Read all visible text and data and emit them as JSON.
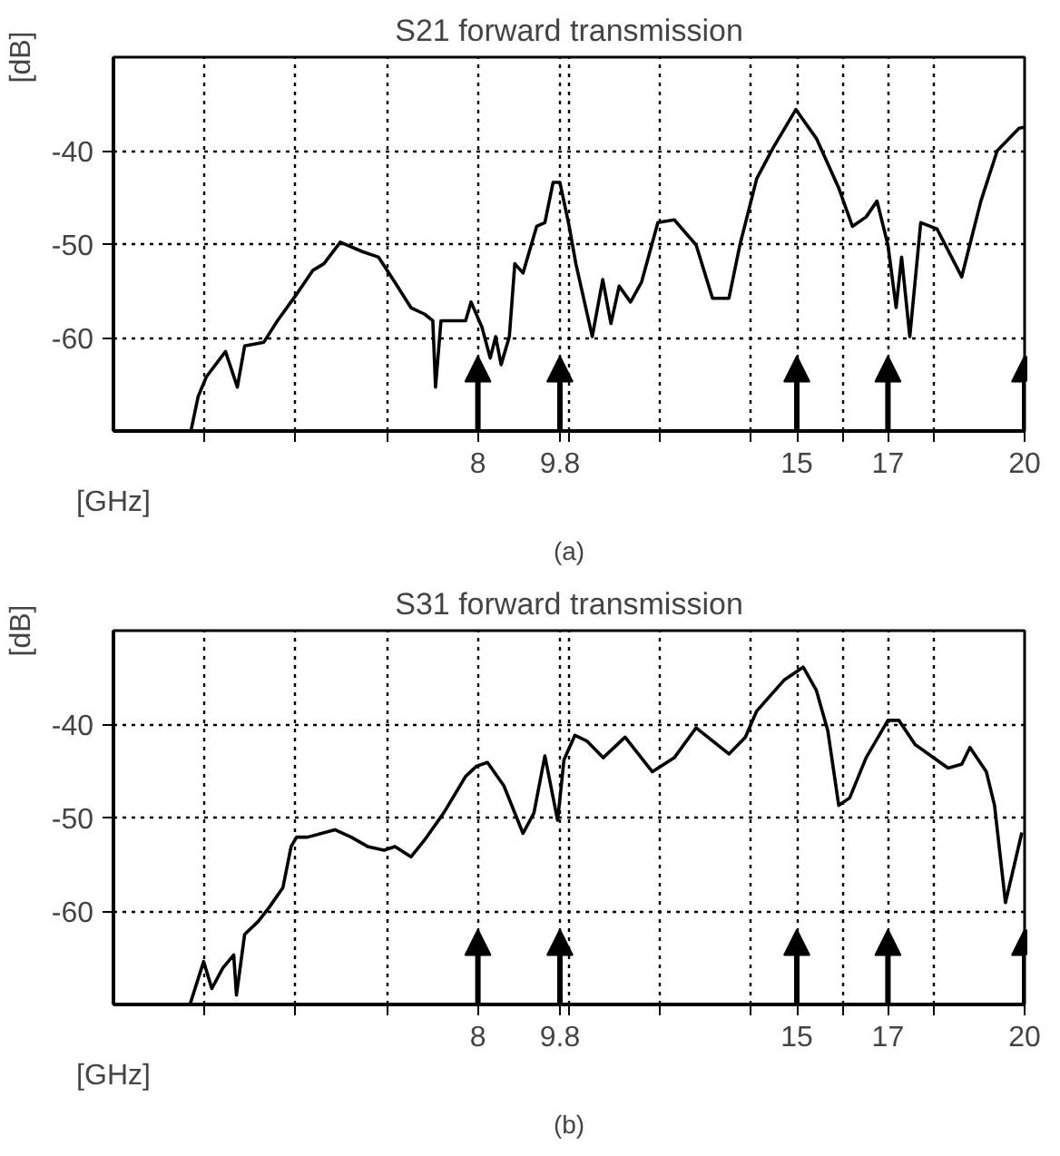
{
  "chart_data": [
    {
      "type": "line",
      "title": "S21 forward transmission",
      "xlabel": "[GHz]",
      "ylabel": "[dB]",
      "annotations": [
        "(a)"
      ],
      "xlim": [
        0,
        20
      ],
      "ylim": [
        -70,
        -30
      ],
      "xticks": [
        {
          "value": 2,
          "label": null
        },
        {
          "value": 4,
          "label": null
        },
        {
          "value": 6,
          "label": null
        },
        8,
        9.8,
        {
          "value": 10,
          "label": null
        },
        {
          "value": 12,
          "label": null
        },
        {
          "value": 14,
          "label": null
        },
        15,
        {
          "value": 16,
          "label": null
        },
        17,
        {
          "value": 18,
          "label": null
        },
        20
      ],
      "yticks": [
        -60,
        -50,
        -40
      ],
      "grid": true,
      "line_style": "solid",
      "marker": "none",
      "series": [
        {
          "color": "#000000",
          "x": [
            1.7,
            1.86,
            2.04,
            2.46,
            2.72,
            2.88,
            3.3,
            3.6,
            4.0,
            4.38,
            4.62,
            4.98,
            5.46,
            5.82,
            6.18,
            6.53,
            6.83,
            7.01,
            7.07,
            7.19,
            7.73,
            7.85,
            8.09,
            8.27,
            8.39,
            8.51,
            8.69,
            8.81,
            8.99,
            9.29,
            9.47,
            9.65,
            9.8,
            10.0,
            10.15,
            10.51,
            10.74,
            10.92,
            11.1,
            11.35,
            11.59,
            11.95,
            12.31,
            12.79,
            13.15,
            13.51,
            13.75,
            14.12,
            14.48,
            14.98,
            15.43,
            15.92,
            16.22,
            16.52,
            16.76,
            17.0,
            17.18,
            17.3,
            17.48,
            17.72,
            18.08,
            18.62,
            19.04,
            19.4,
            19.88,
            20.0
          ],
          "values": [
            -70,
            -66.3,
            -64.2,
            -61.5,
            -65.3,
            -60.9,
            -60.5,
            -58.2,
            -55.5,
            -52.8,
            -52.1,
            -49.8,
            -50.8,
            -51.4,
            -54.1,
            -56.8,
            -57.5,
            -58.2,
            -65.3,
            -58.2,
            -58.2,
            -56.2,
            -58.9,
            -62.2,
            -59.9,
            -62.9,
            -59.9,
            -52.1,
            -53.1,
            -48.1,
            -47.7,
            -43.4,
            -43.4,
            -48,
            -52.1,
            -59.9,
            -53.8,
            -58.5,
            -54.5,
            -56.2,
            -54.1,
            -47.7,
            -47.4,
            -50.1,
            -55.8,
            -55.8,
            -50.1,
            -43.0,
            -39.7,
            -35.6,
            -38.7,
            -44.0,
            -48.1,
            -47.1,
            -45.4,
            -50.1,
            -56.8,
            -51.4,
            -59.9,
            -47.7,
            -48.4,
            -53.5,
            -45.4,
            -40.0,
            -37.6,
            -37.5
          ]
        }
      ]
    },
    {
      "type": "line",
      "title": "S31 forward transmission",
      "xlabel": "[GHz]",
      "ylabel": "[dB]",
      "annotations": [
        "(b)"
      ],
      "xlim": [
        0,
        20
      ],
      "ylim": [
        -70,
        -30
      ],
      "xticks": [
        {
          "value": 2,
          "label": null
        },
        {
          "value": 4,
          "label": null
        },
        {
          "value": 6,
          "label": null
        },
        8,
        9.8,
        {
          "value": 10,
          "label": null
        },
        {
          "value": 12,
          "label": null
        },
        {
          "value": 14,
          "label": null
        },
        15,
        {
          "value": 16,
          "label": null
        },
        17,
        {
          "value": 18,
          "label": null
        },
        20
      ],
      "yticks": [
        -60,
        -50,
        -40
      ],
      "grid": true,
      "line_style": "solid",
      "marker": "none",
      "series": [
        {
          "color": "#000000",
          "x": [
            1.68,
            1.98,
            2.16,
            2.4,
            2.64,
            2.7,
            2.88,
            3.18,
            3.42,
            3.72,
            3.9,
            4.02,
            4.26,
            4.86,
            5.22,
            5.58,
            5.94,
            6.18,
            6.53,
            6.83,
            7.25,
            7.73,
            7.97,
            8.21,
            8.57,
            8.99,
            9.23,
            9.47,
            9.75,
            9.89,
            10.13,
            10.39,
            10.75,
            11.23,
            11.83,
            12.31,
            12.79,
            13.51,
            13.87,
            14.12,
            14.72,
            15.14,
            15.43,
            15.68,
            15.92,
            16.16,
            16.52,
            17.0,
            17.24,
            17.6,
            18.32,
            18.62,
            18.8,
            19.16,
            19.34,
            19.58,
            19.94
          ],
          "values": [
            -70,
            -65.4,
            -68.3,
            -66.1,
            -64.7,
            -69.0,
            -62.5,
            -61.1,
            -59.6,
            -57.5,
            -53.1,
            -52.1,
            -52.1,
            -51.3,
            -52.1,
            -53.1,
            -53.5,
            -53.1,
            -54.2,
            -52.4,
            -49.5,
            -45.6,
            -44.5,
            -44.1,
            -46.6,
            -51.7,
            -49.5,
            -43.4,
            -50.3,
            -43.8,
            -41.2,
            -41.8,
            -43.6,
            -41.4,
            -45.1,
            -43.6,
            -40.4,
            -43.2,
            -41.4,
            -38.6,
            -35.3,
            -33.9,
            -36.4,
            -40.7,
            -48.7,
            -47.9,
            -43.6,
            -39.6,
            -39.6,
            -42.2,
            -44.7,
            -44.3,
            -42.5,
            -45.1,
            -48.7,
            -59.1,
            -51.6
          ]
        }
      ]
    }
  ]
}
